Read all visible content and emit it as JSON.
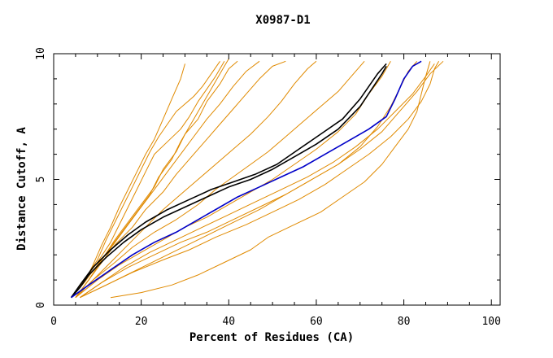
{
  "chart_data": {
    "type": "line",
    "title": "X0987-D1",
    "xlabel": "Percent of Residues (CA)",
    "ylabel": "Distance Cutoff, A",
    "xlim": [
      0,
      102
    ],
    "ylim": [
      0,
      10
    ],
    "xticks": [
      "0",
      "20",
      "40",
      "60",
      "80",
      "100"
    ],
    "yticks": [
      "0",
      "5",
      "10"
    ],
    "grid": false,
    "colors": {
      "other": "#e08a00",
      "black": "#000000",
      "blue": "#0000c8"
    },
    "series": [
      {
        "color": "black",
        "points": [
          [
            4,
            0.3
          ],
          [
            6,
            0.7
          ],
          [
            8,
            1.2
          ],
          [
            12,
            1.9
          ],
          [
            16,
            2.5
          ],
          [
            20,
            3.0
          ],
          [
            25,
            3.5
          ],
          [
            30,
            3.9
          ],
          [
            35,
            4.3
          ],
          [
            40,
            4.7
          ],
          [
            45,
            5.0
          ],
          [
            50,
            5.4
          ],
          [
            55,
            5.9
          ],
          [
            60,
            6.4
          ],
          [
            65,
            7.0
          ],
          [
            70,
            7.9
          ],
          [
            75,
            9.2
          ],
          [
            76,
            9.5
          ]
        ]
      },
      {
        "color": "black",
        "points": [
          [
            4,
            0.3
          ],
          [
            6,
            0.8
          ],
          [
            9,
            1.5
          ],
          [
            13,
            2.2
          ],
          [
            17,
            2.8
          ],
          [
            21,
            3.3
          ],
          [
            26,
            3.8
          ],
          [
            31,
            4.2
          ],
          [
            36,
            4.6
          ],
          [
            41,
            4.9
          ],
          [
            46,
            5.2
          ],
          [
            51,
            5.6
          ],
          [
            56,
            6.2
          ],
          [
            61,
            6.8
          ],
          [
            66,
            7.4
          ],
          [
            70,
            8.2
          ],
          [
            74,
            9.2
          ],
          [
            76,
            9.6
          ]
        ]
      },
      {
        "color": "blue",
        "points": [
          [
            4,
            0.3
          ],
          [
            8,
            0.8
          ],
          [
            13,
            1.4
          ],
          [
            18,
            2.0
          ],
          [
            23,
            2.5
          ],
          [
            28,
            2.9
          ],
          [
            33,
            3.4
          ],
          [
            38,
            3.9
          ],
          [
            42,
            4.3
          ],
          [
            47,
            4.7
          ],
          [
            52,
            5.1
          ],
          [
            57,
            5.5
          ],
          [
            62,
            6.0
          ],
          [
            67,
            6.5
          ],
          [
            72,
            7.0
          ],
          [
            76,
            7.5
          ],
          [
            78,
            8.2
          ],
          [
            80,
            9.0
          ],
          [
            82,
            9.5
          ],
          [
            84,
            9.7
          ]
        ]
      },
      {
        "color": "other",
        "points": [
          [
            4,
            0.3
          ],
          [
            7,
            0.9
          ],
          [
            9,
            1.6
          ],
          [
            11,
            2.4
          ],
          [
            13,
            3.1
          ],
          [
            15,
            3.9
          ],
          [
            17,
            4.6
          ],
          [
            19,
            5.3
          ],
          [
            21,
            6.0
          ],
          [
            23,
            6.6
          ],
          [
            25,
            7.4
          ],
          [
            27,
            8.2
          ],
          [
            29,
            9.0
          ],
          [
            30,
            9.6
          ]
        ]
      },
      {
        "color": "other",
        "points": [
          [
            4,
            0.3
          ],
          [
            7,
            1.0
          ],
          [
            10,
            1.8
          ],
          [
            12,
            2.6
          ],
          [
            14,
            3.3
          ],
          [
            16,
            4.0
          ],
          [
            18,
            4.7
          ],
          [
            20,
            5.4
          ],
          [
            22,
            6.1
          ],
          [
            24,
            6.7
          ],
          [
            26,
            7.2
          ],
          [
            28,
            7.7
          ],
          [
            30,
            8.0
          ],
          [
            32,
            8.3
          ],
          [
            34,
            8.7
          ],
          [
            36,
            9.2
          ],
          [
            38,
            9.7
          ]
        ]
      },
      {
        "color": "other",
        "points": [
          [
            4,
            0.3
          ],
          [
            7,
            1.0
          ],
          [
            10,
            1.7
          ],
          [
            13,
            2.5
          ],
          [
            15,
            3.2
          ],
          [
            17,
            3.9
          ],
          [
            19,
            4.6
          ],
          [
            21,
            5.3
          ],
          [
            23,
            6.0
          ],
          [
            26,
            6.5
          ],
          [
            29,
            7.0
          ],
          [
            31,
            7.5
          ],
          [
            33,
            8.1
          ],
          [
            35,
            8.6
          ],
          [
            37,
            9.1
          ],
          [
            39,
            9.7
          ]
        ]
      },
      {
        "color": "other",
        "points": [
          [
            4,
            0.3
          ],
          [
            7,
            0.9
          ],
          [
            10,
            1.6
          ],
          [
            13,
            2.3
          ],
          [
            16,
            3.0
          ],
          [
            19,
            3.7
          ],
          [
            22,
            4.4
          ],
          [
            24,
            5.1
          ],
          [
            27,
            5.8
          ],
          [
            29,
            6.5
          ],
          [
            31,
            7.1
          ],
          [
            33,
            7.7
          ],
          [
            35,
            8.3
          ],
          [
            37,
            8.9
          ],
          [
            39,
            9.5
          ],
          [
            40,
            9.8
          ]
        ]
      },
      {
        "color": "other",
        "points": [
          [
            5,
            0.3
          ],
          [
            8,
            1.0
          ],
          [
            11,
            1.8
          ],
          [
            14,
            2.6
          ],
          [
            17,
            3.3
          ],
          [
            20,
            4.0
          ],
          [
            23,
            4.7
          ],
          [
            25,
            5.4
          ],
          [
            28,
            6.1
          ],
          [
            30,
            6.8
          ],
          [
            33,
            7.4
          ],
          [
            35,
            8.1
          ],
          [
            38,
            8.8
          ],
          [
            40,
            9.4
          ],
          [
            42,
            9.7
          ]
        ]
      },
      {
        "color": "other",
        "points": [
          [
            5,
            0.3
          ],
          [
            8,
            1.0
          ],
          [
            11,
            1.8
          ],
          [
            14,
            2.5
          ],
          [
            17,
            3.2
          ],
          [
            20,
            3.9
          ],
          [
            23,
            4.6
          ],
          [
            26,
            5.3
          ],
          [
            29,
            6.0
          ],
          [
            32,
            6.7
          ],
          [
            35,
            7.4
          ],
          [
            38,
            8.0
          ],
          [
            41,
            8.7
          ],
          [
            44,
            9.3
          ],
          [
            47,
            9.7
          ]
        ]
      },
      {
        "color": "other",
        "points": [
          [
            5,
            0.3
          ],
          [
            8,
            1.0
          ],
          [
            11,
            1.7
          ],
          [
            14,
            2.4
          ],
          [
            18,
            3.1
          ],
          [
            21,
            3.8
          ],
          [
            25,
            4.5
          ],
          [
            28,
            5.2
          ],
          [
            32,
            6.0
          ],
          [
            35,
            6.6
          ],
          [
            38,
            7.2
          ],
          [
            41,
            7.8
          ],
          [
            44,
            8.4
          ],
          [
            47,
            9.0
          ],
          [
            50,
            9.5
          ],
          [
            53,
            9.7
          ]
        ]
      },
      {
        "color": "other",
        "points": [
          [
            5,
            0.3
          ],
          [
            9,
            1.0
          ],
          [
            13,
            1.7
          ],
          [
            17,
            2.4
          ],
          [
            21,
            3.1
          ],
          [
            25,
            3.8
          ],
          [
            29,
            4.4
          ],
          [
            33,
            5.0
          ],
          [
            37,
            5.6
          ],
          [
            41,
            6.2
          ],
          [
            45,
            6.8
          ],
          [
            49,
            7.5
          ],
          [
            52,
            8.1
          ],
          [
            55,
            8.8
          ],
          [
            58,
            9.4
          ],
          [
            60,
            9.7
          ]
        ]
      },
      {
        "color": "other",
        "points": [
          [
            5,
            0.3
          ],
          [
            9,
            1.0
          ],
          [
            14,
            1.7
          ],
          [
            18,
            2.3
          ],
          [
            23,
            2.9
          ],
          [
            28,
            3.4
          ],
          [
            33,
            4.0
          ],
          [
            37,
            4.6
          ],
          [
            41,
            5.1
          ],
          [
            45,
            5.6
          ],
          [
            49,
            6.1
          ],
          [
            53,
            6.7
          ],
          [
            57,
            7.3
          ],
          [
            61,
            7.9
          ],
          [
            65,
            8.5
          ],
          [
            68,
            9.1
          ],
          [
            71,
            9.7
          ]
        ]
      },
      {
        "color": "other",
        "points": [
          [
            5,
            0.3
          ],
          [
            10,
            1.0
          ],
          [
            15,
            1.6
          ],
          [
            20,
            2.1
          ],
          [
            25,
            2.6
          ],
          [
            30,
            3.1
          ],
          [
            35,
            3.5
          ],
          [
            40,
            4.0
          ],
          [
            45,
            4.5
          ],
          [
            50,
            5.0
          ],
          [
            55,
            5.6
          ],
          [
            60,
            6.2
          ],
          [
            65,
            6.9
          ],
          [
            69,
            7.6
          ],
          [
            72,
            8.4
          ],
          [
            75,
            9.1
          ],
          [
            77,
            9.7
          ]
        ]
      },
      {
        "color": "other",
        "points": [
          [
            6,
            0.3
          ],
          [
            11,
            0.9
          ],
          [
            16,
            1.5
          ],
          [
            22,
            2.1
          ],
          [
            28,
            2.6
          ],
          [
            34,
            3.1
          ],
          [
            40,
            3.6
          ],
          [
            46,
            4.1
          ],
          [
            52,
            4.6
          ],
          [
            58,
            5.1
          ],
          [
            64,
            5.7
          ],
          [
            69,
            6.3
          ],
          [
            74,
            7.0
          ],
          [
            78,
            7.7
          ],
          [
            82,
            8.4
          ],
          [
            85,
            9.1
          ],
          [
            87,
            9.6
          ]
        ]
      },
      {
        "color": "other",
        "points": [
          [
            6,
            0.3
          ],
          [
            11,
            0.9
          ],
          [
            17,
            1.5
          ],
          [
            23,
            2.0
          ],
          [
            29,
            2.5
          ],
          [
            35,
            2.9
          ],
          [
            41,
            3.4
          ],
          [
            47,
            3.9
          ],
          [
            53,
            4.4
          ],
          [
            59,
            5.0
          ],
          [
            65,
            5.6
          ],
          [
            70,
            6.2
          ],
          [
            75,
            6.9
          ],
          [
            79,
            7.7
          ],
          [
            83,
            8.5
          ],
          [
            86,
            9.2
          ],
          [
            89,
            9.7
          ]
        ]
      },
      {
        "color": "other",
        "points": [
          [
            6,
            0.3
          ],
          [
            12,
            0.8
          ],
          [
            18,
            1.3
          ],
          [
            25,
            1.8
          ],
          [
            31,
            2.2
          ],
          [
            37,
            2.7
          ],
          [
            44,
            3.2
          ],
          [
            50,
            3.7
          ],
          [
            56,
            4.2
          ],
          [
            62,
            4.8
          ],
          [
            67,
            5.4
          ],
          [
            72,
            6.0
          ],
          [
            77,
            6.7
          ],
          [
            81,
            7.4
          ],
          [
            84,
            8.1
          ],
          [
            86,
            8.8
          ],
          [
            87,
            9.4
          ],
          [
            88,
            9.7
          ]
        ]
      },
      {
        "color": "other",
        "points": [
          [
            6,
            0.3
          ],
          [
            12,
            0.8
          ],
          [
            19,
            1.4
          ],
          [
            26,
            2.0
          ],
          [
            33,
            2.6
          ],
          [
            40,
            3.2
          ],
          [
            47,
            3.8
          ],
          [
            53,
            4.4
          ],
          [
            59,
            5.0
          ],
          [
            65,
            5.6
          ],
          [
            70,
            6.3
          ],
          [
            74,
            7.1
          ],
          [
            77,
            7.9
          ],
          [
            79,
            8.6
          ],
          [
            81,
            9.3
          ],
          [
            83,
            9.7
          ]
        ]
      },
      {
        "color": "other",
        "points": [
          [
            13,
            0.3
          ],
          [
            20,
            0.5
          ],
          [
            27,
            0.8
          ],
          [
            33,
            1.2
          ],
          [
            39,
            1.7
          ],
          [
            45,
            2.2
          ],
          [
            49,
            2.7
          ],
          [
            55,
            3.2
          ],
          [
            61,
            3.7
          ],
          [
            66,
            4.3
          ],
          [
            71,
            4.9
          ],
          [
            75,
            5.6
          ],
          [
            78,
            6.3
          ],
          [
            81,
            7.0
          ],
          [
            83,
            7.7
          ],
          [
            84,
            8.4
          ],
          [
            85,
            9.1
          ],
          [
            86,
            9.7
          ]
        ]
      }
    ]
  }
}
